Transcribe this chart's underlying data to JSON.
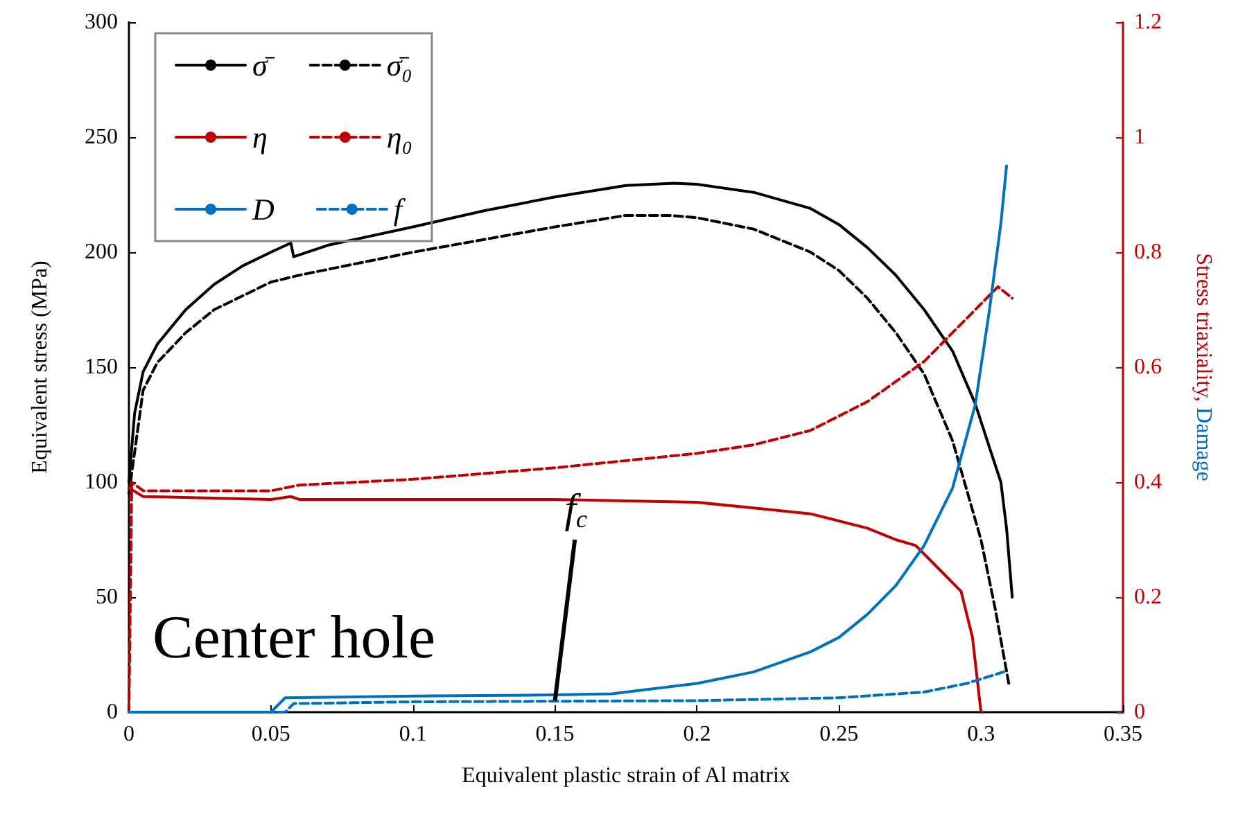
{
  "chart_data": {
    "type": "line",
    "xlabel": "Equivalent plastic strain of Al matrix",
    "ylabel": "Equivalent stress (MPa)",
    "y2label": "Stress triaxiality, Damage",
    "xlim": [
      0,
      0.35
    ],
    "xticks": [
      0,
      0.05,
      0.1,
      0.15,
      0.2,
      0.25,
      0.3,
      0.35
    ],
    "ylim": [
      0,
      300
    ],
    "yticks": [
      0,
      50,
      100,
      150,
      200,
      250,
      300
    ],
    "y2lim": [
      0,
      1.2
    ],
    "y2ticks": [
      0,
      0.2,
      0.4,
      0.6,
      0.8,
      1,
      1.2
    ],
    "grid": false,
    "legend": "top left",
    "marker": "none",
    "annotations": [
      "Center hole",
      {
        "text": "f$_{c}$",
        "x": 0.15,
        "y": 5
      }
    ],
    "series": [
      {
        "name": "σ̄",
        "color": "#000000",
        "line_style": "solid",
        "x": [
          0,
          0.002,
          0.005,
          0.01,
          0.02,
          0.03,
          0.04,
          0.05,
          0.057,
          0.058,
          0.07,
          0.1,
          0.125,
          0.15,
          0.175,
          0.192,
          0.2,
          0.22,
          0.24,
          0.25,
          0.26,
          0.27,
          0.28,
          0.29,
          0.298,
          0.303,
          0.307,
          0.309,
          0.311
        ],
        "values": [
          100,
          130,
          148,
          160,
          175,
          186,
          194,
          200,
          204,
          198,
          203,
          211,
          218,
          224,
          229,
          230,
          229.5,
          226,
          219,
          212,
          202,
          190,
          175,
          157,
          134,
          115,
          100,
          80,
          50
        ]
      },
      {
        "name": "σ̄₀",
        "color": "#000000",
        "line_style": "dashed",
        "x": [
          0,
          0.005,
          0.01,
          0.02,
          0.03,
          0.05,
          0.06,
          0.1,
          0.15,
          0.175,
          0.19,
          0.2,
          0.22,
          0.24,
          0.25,
          0.26,
          0.27,
          0.28,
          0.29,
          0.3,
          0.305,
          0.31
        ],
        "values": [
          95,
          140,
          152,
          165,
          175,
          187,
          190,
          200,
          211,
          216,
          216,
          215,
          210,
          200,
          192,
          180,
          165,
          147,
          118,
          75,
          45,
          11
        ]
      },
      {
        "name": "η",
        "color": "#c00000",
        "line_style": "solid",
        "axis": "y2",
        "x": [
          0,
          0.005,
          0.05,
          0.057,
          0.06,
          0.1,
          0.15,
          0.2,
          0.22,
          0.24,
          0.26,
          0.27,
          0.277,
          0.285,
          0.293,
          0.297,
          0.3
        ],
        "values": [
          0.39,
          0.375,
          0.37,
          0.375,
          0.37,
          0.37,
          0.37,
          0.365,
          0.355,
          0.345,
          0.32,
          0.3,
          0.29,
          0.25,
          0.21,
          0.13,
          0
        ]
      },
      {
        "name": "η₀",
        "color": "#c00000",
        "line_style": "dashed",
        "axis": "y2",
        "x": [
          0,
          0.001,
          0.005,
          0.05,
          0.06,
          0.1,
          0.15,
          0.2,
          0.22,
          0.24,
          0.26,
          0.28,
          0.29,
          0.3,
          0.306,
          0.311
        ],
        "values": [
          0,
          0.4,
          0.385,
          0.385,
          0.395,
          0.405,
          0.425,
          0.45,
          0.465,
          0.49,
          0.54,
          0.61,
          0.66,
          0.71,
          0.74,
          0.72
        ]
      },
      {
        "name": "D",
        "color": "#0070c0",
        "line_style": "solid",
        "axis": "y2",
        "x": [
          0,
          0.05,
          0.055,
          0.1,
          0.15,
          0.17,
          0.2,
          0.22,
          0.24,
          0.25,
          0.26,
          0.27,
          0.28,
          0.29,
          0.298,
          0.303,
          0.307,
          0.309
        ],
        "values": [
          0,
          0,
          0.025,
          0.028,
          0.03,
          0.032,
          0.05,
          0.07,
          0.105,
          0.13,
          0.17,
          0.22,
          0.29,
          0.39,
          0.535,
          0.7,
          0.85,
          0.95
        ]
      },
      {
        "name": "f",
        "color": "#0070c0",
        "line_style": "dashed",
        "axis": "y2",
        "x": [
          0,
          0.055,
          0.058,
          0.1,
          0.2,
          0.25,
          0.28,
          0.295,
          0.308
        ],
        "values": [
          0,
          0,
          0.015,
          0.018,
          0.02,
          0.025,
          0.035,
          0.05,
          0.07
        ]
      }
    ]
  }
}
